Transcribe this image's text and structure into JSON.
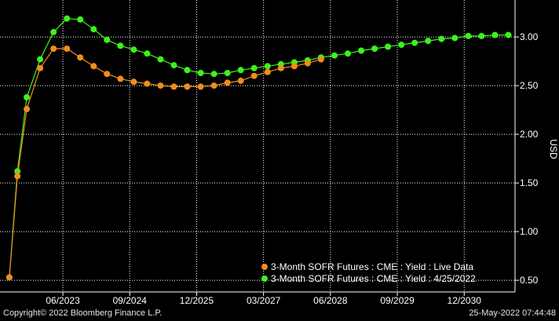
{
  "chart_data": {
    "type": "line",
    "ylabel": "USD",
    "ylim": [
      0.38,
      3.38
    ],
    "xlim": [
      0,
      38.5
    ],
    "yticks": [
      "0.50",
      "1.00",
      "1.50",
      "2.00",
      "2.50",
      "3.00"
    ],
    "xticks": [
      {
        "x": 4.7,
        "label": "06/2023"
      },
      {
        "x": 9.7,
        "label": "09/2024"
      },
      {
        "x": 14.7,
        "label": "12/2025"
      },
      {
        "x": 19.7,
        "label": "03/2027"
      },
      {
        "x": 24.7,
        "label": "06/2028"
      },
      {
        "x": 29.7,
        "label": "09/2029"
      },
      {
        "x": 34.7,
        "label": "12/2030"
      }
    ],
    "series": [
      {
        "name": "3-Month SOFR Futures : CME : Yield : Live Data",
        "color": "#f28c1e",
        "x": [
          0.7,
          1.3,
          2.0,
          3.0,
          4.0,
          5.0,
          6.0,
          7.0,
          8.0,
          9.0,
          10.0,
          11.0,
          12.0,
          13.0,
          14.0,
          15.0,
          16.0,
          17.0,
          18.0,
          19.0,
          20.0,
          21.0,
          22.0,
          23.0,
          24.0
        ],
        "values": [
          0.53,
          1.57,
          2.26,
          2.68,
          2.88,
          2.88,
          2.79,
          2.7,
          2.62,
          2.57,
          2.54,
          2.52,
          2.5,
          2.49,
          2.49,
          2.49,
          2.5,
          2.53,
          2.55,
          2.6,
          2.64,
          2.68,
          2.7,
          2.73,
          2.77
        ]
      },
      {
        "name": "3-Month SOFR Futures : CME : Yield : 4/25/2022",
        "color": "#3df21e",
        "x": [
          0.7,
          1.3,
          2.0,
          3.0,
          4.0,
          5.0,
          6.0,
          7.0,
          8.0,
          9.0,
          10.0,
          11.0,
          12.0,
          13.0,
          14.0,
          15.0,
          16.0,
          17.0,
          18.0,
          19.0,
          20.0,
          21.0,
          22.0,
          23.0,
          24.0,
          25.0,
          26.0,
          27.0,
          28.0,
          29.0,
          30.0,
          31.0,
          32.0,
          33.0,
          34.0,
          35.0,
          36.0,
          37.0,
          38.0
        ],
        "values": [
          0.53,
          1.62,
          2.38,
          2.77,
          3.05,
          3.19,
          3.18,
          3.08,
          2.97,
          2.91,
          2.87,
          2.83,
          2.77,
          2.71,
          2.66,
          2.63,
          2.62,
          2.63,
          2.66,
          2.68,
          2.7,
          2.72,
          2.74,
          2.76,
          2.79,
          2.81,
          2.83,
          2.86,
          2.88,
          2.9,
          2.92,
          2.94,
          2.96,
          2.98,
          2.99,
          3.01,
          3.01,
          3.02,
          3.02
        ]
      }
    ]
  },
  "legend": [
    {
      "label": "3-Month SOFR Futures : CME : Yield : Live Data",
      "color": "#f28c1e"
    },
    {
      "label": "3-Month SOFR Futures : CME : Yield : 4/25/2022",
      "color": "#3df21e"
    }
  ],
  "footer": {
    "left": "Copyright© 2022 Bloomberg Finance L.P.",
    "right": "25-May-2022 07:44:48"
  }
}
